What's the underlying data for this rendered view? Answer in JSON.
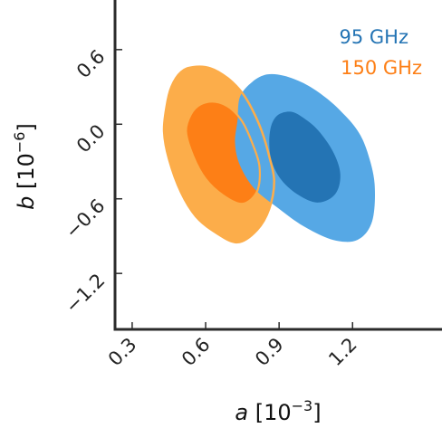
{
  "chart_data": {
    "type": "contour",
    "xlabel": {
      "var": "a",
      "rest": " [10",
      "exp": "−3",
      "close": "]"
    },
    "ylabel": {
      "var": "b",
      "rest": " [10",
      "exp": "−6",
      "close": "]"
    },
    "xlim": [
      0.23,
      1.58
    ],
    "ylim": [
      -1.65,
      0.97
    ],
    "xticks": [
      0.3,
      0.6,
      0.9,
      1.2
    ],
    "xtick_labels": [
      "0.3",
      "0.6",
      "0.9",
      "1.2"
    ],
    "yticks": [
      0.6,
      0.0,
      -0.6,
      -1.2
    ],
    "ytick_labels": [
      "0.6",
      "0.0",
      "−0.6",
      "−1.2"
    ],
    "legend_position": "top-right",
    "series": [
      {
        "name": "95 GHz",
        "outer_color": "#56a8e5",
        "inner_color": "#2474b4",
        "outer": [
          [
            0.73,
            0.03
          ],
          [
            0.74,
            0.22
          ],
          [
            0.79,
            0.34
          ],
          [
            0.85,
            0.4
          ],
          [
            0.92,
            0.39
          ],
          [
            1.0,
            0.33
          ],
          [
            1.08,
            0.23
          ],
          [
            1.15,
            0.11
          ],
          [
            1.22,
            -0.05
          ],
          [
            1.26,
            -0.22
          ],
          [
            1.29,
            -0.48
          ],
          [
            1.28,
            -0.78
          ],
          [
            1.22,
            -0.93
          ],
          [
            1.12,
            -0.93
          ],
          [
            1.0,
            -0.82
          ],
          [
            0.9,
            -0.68
          ],
          [
            0.8,
            -0.52
          ],
          [
            0.74,
            -0.33
          ],
          [
            0.72,
            -0.15
          ]
        ],
        "inner": [
          [
            0.86,
            -0.14
          ],
          [
            0.87,
            0.0
          ],
          [
            0.9,
            0.08
          ],
          [
            0.95,
            0.1
          ],
          [
            1.0,
            0.05
          ],
          [
            1.06,
            -0.05
          ],
          [
            1.12,
            -0.22
          ],
          [
            1.15,
            -0.4
          ],
          [
            1.13,
            -0.56
          ],
          [
            1.06,
            -0.63
          ],
          [
            0.98,
            -0.57
          ],
          [
            0.91,
            -0.45
          ],
          [
            0.87,
            -0.3
          ]
        ]
      },
      {
        "name": "150 GHz",
        "outer_color": "#fcad4a",
        "inner_color": "#fd7f16",
        "outer": [
          [
            0.44,
            0.14
          ],
          [
            0.46,
            0.3
          ],
          [
            0.5,
            0.42
          ],
          [
            0.55,
            0.46
          ],
          [
            0.62,
            0.45
          ],
          [
            0.69,
            0.37
          ],
          [
            0.75,
            0.25
          ],
          [
            0.79,
            0.12
          ],
          [
            0.83,
            -0.06
          ],
          [
            0.86,
            -0.26
          ],
          [
            0.88,
            -0.46
          ],
          [
            0.86,
            -0.68
          ],
          [
            0.81,
            -0.85
          ],
          [
            0.73,
            -0.95
          ],
          [
            0.64,
            -0.87
          ],
          [
            0.56,
            -0.74
          ],
          [
            0.5,
            -0.55
          ],
          [
            0.45,
            -0.28
          ],
          [
            0.43,
            -0.06
          ]
        ],
        "inner": [
          [
            0.52,
            -0.06
          ],
          [
            0.54,
            0.08
          ],
          [
            0.58,
            0.16
          ],
          [
            0.64,
            0.18
          ],
          [
            0.7,
            0.13
          ],
          [
            0.75,
            0.02
          ],
          [
            0.79,
            -0.15
          ],
          [
            0.82,
            -0.34
          ],
          [
            0.81,
            -0.54
          ],
          [
            0.75,
            -0.64
          ],
          [
            0.67,
            -0.57
          ],
          [
            0.6,
            -0.44
          ],
          [
            0.55,
            -0.26
          ]
        ]
      }
    ]
  }
}
